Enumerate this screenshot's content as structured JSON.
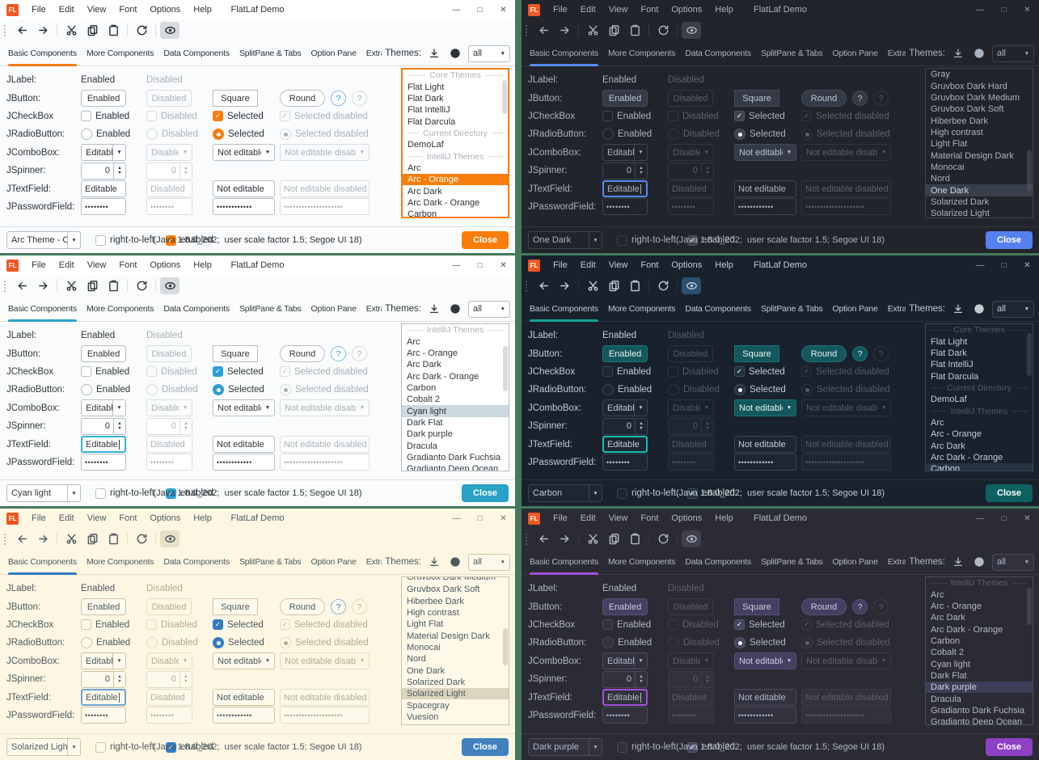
{
  "desktop": {
    "background": "#46795b"
  },
  "shared": {
    "logo_text": "FL",
    "title": "FlatLaf Demo",
    "menus": [
      "File",
      "Edit",
      "View",
      "Font",
      "Options",
      "Help"
    ],
    "window_controls": {
      "minimize": "—",
      "maximize": "□",
      "close": "✕"
    },
    "toolbar_icons": [
      "back",
      "forward",
      "cut",
      "copy",
      "paste",
      "refresh",
      "show"
    ],
    "tabs": [
      "Basic Components",
      "More Components",
      "Data Components",
      "SplitPane & Tabs",
      "Option Pane",
      "Extras"
    ],
    "themes_panel": {
      "label": "Themes:",
      "filter_value": "all"
    },
    "icons": {
      "dropdown_arrow": "▼",
      "spinner_up": "▲",
      "spinner_down": "▼"
    },
    "grid": {
      "jlabel": {
        "label": "JLabel:",
        "enabled": "Enabled",
        "disabled": "Disabled"
      },
      "jbutton": {
        "label": "JButton:",
        "buttons": [
          "Enabled",
          "Disabled",
          "Square",
          "Round"
        ],
        "help": "?"
      },
      "jcheckbox": {
        "label": "JCheckBox",
        "items": [
          "Enabled",
          "Disabled",
          "Selected",
          "Selected disabled"
        ]
      },
      "jradiobutton": {
        "label": "JRadioButton:",
        "items": [
          "Enabled",
          "Disabled",
          "Selected",
          "Selected disabled"
        ]
      },
      "jcombobox": {
        "label": "JComboBox:",
        "items": [
          "Editable",
          "Disabled",
          "Not editable",
          "Not editable disabled"
        ]
      },
      "jspinner": {
        "label": "JSpinner:",
        "value": "0"
      },
      "jtextfield": {
        "label": "JTextField:",
        "items": [
          "Editable",
          "Disabled",
          "Not editable",
          "Not editable disabled"
        ]
      },
      "jpasswordfield": {
        "label": "JPasswordField:",
        "values": [
          "••••••••",
          "••••••••",
          "••••••••••••",
          "••••••••••••••••••••"
        ]
      }
    },
    "statusbar": {
      "rtl_label": "right-to-left",
      "enabled_label": "enabled",
      "info": "(Java 1.8.0_202;  user scale factor 1.5; Segoe UI 18)",
      "close_label": "Close"
    }
  },
  "windows": [
    {
      "name": "arc-orange",
      "theme_combo_value": "Arc Theme - O...",
      "textfield_focused": false,
      "caret": false,
      "list_focused": true,
      "scrollbar": {
        "top_pct": 6,
        "height_pct": 24
      },
      "colors": {
        "bg": "#fafbfc",
        "titlebar": "#ffffff",
        "text": "#2b3238",
        "dim": "#a9b2b9",
        "field": "#ffffff",
        "border": "#b4bec6",
        "border_dim": "#d7dde1",
        "btn": "#ffffff",
        "btn_border": "#b4bec6",
        "btn_text": "#2b3238",
        "accent": "#f97d0c",
        "sel_bg": "#f97d0c",
        "sel_text": "#ffffff",
        "close": "#f97d0c",
        "check": "#f97d0c",
        "check_border": "#f97d0c",
        "divider": "#d9dee2",
        "list_bg": "#ffffff",
        "list_border": "#f97d0c",
        "focus": "#f97d0c",
        "highlight": "#d7dbdf",
        "help_bg": "#ffffff",
        "help_border": "#85b7e9",
        "help_text": "#3a8ad8"
      },
      "list": [
        {
          "type": "header",
          "label": "Core Themes"
        },
        {
          "type": "item",
          "label": "Flat Light"
        },
        {
          "type": "item",
          "label": "Flat Dark"
        },
        {
          "type": "item",
          "label": "Flat IntelliJ"
        },
        {
          "type": "item",
          "label": "Flat Darcula"
        },
        {
          "type": "header",
          "label": "Current Directory"
        },
        {
          "type": "item",
          "label": "DemoLaf"
        },
        {
          "type": "header",
          "label": "IntelliJ Themes"
        },
        {
          "type": "item",
          "label": "Arc"
        },
        {
          "type": "item",
          "label": "Arc - Orange",
          "selected": true
        },
        {
          "type": "item",
          "label": "Arc Dark"
        },
        {
          "type": "item",
          "label": "Arc Dark - Orange"
        },
        {
          "type": "item",
          "label": "Carbon"
        }
      ]
    },
    {
      "name": "one-dark",
      "theme_combo_value": "One Dark",
      "textfield_focused": true,
      "caret": true,
      "list_focused": false,
      "scrollbar": {
        "top_pct": 55,
        "height_pct": 28
      },
      "colors": {
        "bg": "#21252b",
        "titlebar": "#21252b",
        "text": "#a8b1bf",
        "dim": "#5a6270",
        "field": "#21252b",
        "border": "#3d434e",
        "border_dim": "#31363e",
        "btn": "#353b46",
        "btn_border": "#444b58",
        "btn_text": "#bcc5d2",
        "accent": "#568af2",
        "sel_bg": "#3a404b",
        "sel_text": "#ced6e2",
        "close": "#5680ef",
        "check": "#3c434e",
        "check_border": "#4d5563",
        "divider": "#34383f",
        "list_bg": "#21252b",
        "list_border": "#3d434e",
        "focus": "#568af2",
        "highlight": "#3a3f4a",
        "help_bg": "#353b46",
        "help_border": "#444b58",
        "help_text": "#c6cedb"
      },
      "list": [
        {
          "type": "item",
          "label": "Gray"
        },
        {
          "type": "item",
          "label": "Gruvbox Dark Hard"
        },
        {
          "type": "item",
          "label": "Gruvbox Dark Medium"
        },
        {
          "type": "item",
          "label": "Gruvbox Dark Soft"
        },
        {
          "type": "item",
          "label": "Hiberbee Dark"
        },
        {
          "type": "item",
          "label": "High contrast"
        },
        {
          "type": "item",
          "label": "Light Flat"
        },
        {
          "type": "item",
          "label": "Material Design Dark"
        },
        {
          "type": "item",
          "label": "Monocai"
        },
        {
          "type": "item",
          "label": "Nord"
        },
        {
          "type": "item",
          "label": "One Dark",
          "selected": true
        },
        {
          "type": "item",
          "label": "Solarized Dark"
        },
        {
          "type": "item",
          "label": "Solarized Light"
        }
      ]
    },
    {
      "name": "cyan-light",
      "theme_combo_value": "Cyan light",
      "textfield_focused": true,
      "caret": true,
      "list_focused": false,
      "scrollbar": {
        "top_pct": 14,
        "height_pct": 32
      },
      "colors": {
        "bg": "#fafbfb",
        "titlebar": "#ffffff",
        "text": "#31383d",
        "dim": "#a8b1b8",
        "field": "#ffffff",
        "border": "#b4bec6",
        "border_dim": "#d7dde1",
        "btn": "#ffffff",
        "btn_border": "#b4bec6",
        "btn_text": "#31383d",
        "accent": "#2ba4c9",
        "sel_bg": "#ccd9de",
        "sel_text": "#2b3135",
        "close": "#29a2c5",
        "check": "#2c9fd4",
        "check_border": "#2c9fd4",
        "divider": "#dadfe2",
        "list_bg": "#ffffff",
        "list_border": "#b4bec6",
        "focus": "#30b6dc",
        "highlight": "#d7dbdf",
        "help_bg": "#ffffff",
        "help_border": "#7cc3e0",
        "help_text": "#2b9fd3"
      },
      "list": [
        {
          "type": "header",
          "label": "IntelliJ Themes"
        },
        {
          "type": "item",
          "label": "Arc"
        },
        {
          "type": "item",
          "label": "Arc - Orange"
        },
        {
          "type": "item",
          "label": "Arc Dark"
        },
        {
          "type": "item",
          "label": "Arc Dark - Orange"
        },
        {
          "type": "item",
          "label": "Carbon"
        },
        {
          "type": "item",
          "label": "Cobalt 2"
        },
        {
          "type": "item",
          "label": "Cyan light",
          "selected": true
        },
        {
          "type": "item",
          "label": "Dark Flat"
        },
        {
          "type": "item",
          "label": "Dark purple"
        },
        {
          "type": "item",
          "label": "Dracula"
        },
        {
          "type": "item",
          "label": "Gradianto Dark Fuchsia"
        },
        {
          "type": "item",
          "label": "Gradianto Deep Ocean"
        }
      ]
    },
    {
      "name": "carbon",
      "theme_combo_value": "Carbon",
      "textfield_focused": true,
      "caret": false,
      "list_focused": false,
      "scrollbar": {
        "top_pct": 5,
        "height_pct": 30
      },
      "colors": {
        "bg": "#19222c",
        "titlebar": "#19222c",
        "text": "#c2cad2",
        "dim": "#4f5b67",
        "field": "#1d2731",
        "border": "#394654",
        "border_dim": "#2b3542",
        "btn": "#14575c",
        "btn_border": "#1e737a",
        "btn_text": "#e4f4f2",
        "accent": "#15a29b",
        "sel_bg": "#263443",
        "sel_text": "#d2dae2",
        "close": "#0e6163",
        "check": "#223140",
        "check_border": "#44525f",
        "divider": "#273340",
        "list_bg": "#19222c",
        "list_border": "#394654",
        "focus": "#0fc0b4",
        "highlight": "#29506e",
        "help_bg": "#14575c",
        "help_border": "#1e737a",
        "help_text": "#e4f4f2"
      },
      "list": [
        {
          "type": "header",
          "label": "Core Themes"
        },
        {
          "type": "item",
          "label": "Flat Light"
        },
        {
          "type": "item",
          "label": "Flat Dark"
        },
        {
          "type": "item",
          "label": "Flat IntelliJ"
        },
        {
          "type": "item",
          "label": "Flat Darcula"
        },
        {
          "type": "header",
          "label": "Current Directory"
        },
        {
          "type": "item",
          "label": "DemoLaf"
        },
        {
          "type": "header",
          "label": "IntelliJ Themes"
        },
        {
          "type": "item",
          "label": "Arc"
        },
        {
          "type": "item",
          "label": "Arc - Orange"
        },
        {
          "type": "item",
          "label": "Arc Dark"
        },
        {
          "type": "item",
          "label": "Arc Dark - Orange"
        },
        {
          "type": "item",
          "label": "Carbon",
          "selected": true
        }
      ]
    },
    {
      "name": "solarized-light",
      "theme_combo_value": "Solarized Light",
      "textfield_focused": true,
      "caret": true,
      "list_focused": false,
      "scrollbar": {
        "top_pct": 34,
        "height_pct": 26
      },
      "colors": {
        "bg": "#fdf6e3",
        "titlebar": "#fdf6e3",
        "text": "#4d5a60",
        "dim": "#b3ac92",
        "field": "#fdfaec",
        "border": "#ccc4a8",
        "border_dim": "#e2dbc2",
        "btn": "#fdfaec",
        "btn_border": "#ccc4a8",
        "btn_text": "#4d5a60",
        "accent": "#337bc2",
        "sel_bg": "#dbd4be",
        "sel_text": "#4d5a60",
        "close": "#4181c0",
        "check": "#337bc2",
        "check_border": "#337bc2",
        "divider": "#e4ddc6",
        "list_bg": "#fdf8e8",
        "list_border": "#ccc4a8",
        "focus": "#6ea4d4",
        "highlight": "#e7e0c7",
        "help_bg": "#fdfaec",
        "help_border": "#8fb4d8",
        "help_text": "#337bc2"
      },
      "list": [
        {
          "type": "item",
          "label": "Gruvbox Dark Medium",
          "partial": true
        },
        {
          "type": "item",
          "label": "Gruvbox Dark Soft"
        },
        {
          "type": "item",
          "label": "Hiberbee Dark"
        },
        {
          "type": "item",
          "label": "High contrast"
        },
        {
          "type": "item",
          "label": "Light Flat"
        },
        {
          "type": "item",
          "label": "Material Design Dark"
        },
        {
          "type": "item",
          "label": "Monocai"
        },
        {
          "type": "item",
          "label": "Nord"
        },
        {
          "type": "item",
          "label": "One Dark"
        },
        {
          "type": "item",
          "label": "Solarized Dark"
        },
        {
          "type": "item",
          "label": "Solarized Light",
          "selected": true
        },
        {
          "type": "item",
          "label": "Spacegray"
        },
        {
          "type": "item",
          "label": "Vuesion"
        }
      ]
    },
    {
      "name": "dark-purple",
      "theme_combo_value": "Dark purple",
      "textfield_focused": true,
      "caret": true,
      "list_focused": false,
      "scrollbar": {
        "top_pct": 6,
        "height_pct": 26
      },
      "colors": {
        "bg": "#2b2b35",
        "titlebar": "#2b2b35",
        "text": "#b2b6c5",
        "dim": "#5f5f6e",
        "field": "#32323e",
        "border": "#4b4b5d",
        "border_dim": "#3c3c49",
        "btn": "#454061",
        "btn_border": "#565177",
        "btn_text": "#ccccde",
        "accent": "#a24fd6",
        "sel_bg": "#3c3f58",
        "sel_text": "#d0d0e2",
        "close": "#8d41c6",
        "check": "#45455f",
        "check_border": "#5a5a74",
        "divider": "#393945",
        "list_bg": "#2b2b35",
        "list_border": "#4b4b5d",
        "focus": "#a24fd6",
        "highlight": "#40404f",
        "help_bg": "#454061",
        "help_border": "#565177",
        "help_text": "#ccccde"
      },
      "list": [
        {
          "type": "header",
          "label": "IntelliJ Themes"
        },
        {
          "type": "item",
          "label": "Arc"
        },
        {
          "type": "item",
          "label": "Arc - Orange"
        },
        {
          "type": "item",
          "label": "Arc Dark"
        },
        {
          "type": "item",
          "label": "Arc Dark - Orange"
        },
        {
          "type": "item",
          "label": "Carbon"
        },
        {
          "type": "item",
          "label": "Cobalt 2"
        },
        {
          "type": "item",
          "label": "Cyan light"
        },
        {
          "type": "item",
          "label": "Dark Flat"
        },
        {
          "type": "item",
          "label": "Dark purple",
          "selected": true
        },
        {
          "type": "item",
          "label": "Dracula"
        },
        {
          "type": "item",
          "label": "Gradianto Dark Fuchsia"
        },
        {
          "type": "item",
          "label": "Gradianto Deep Ocean"
        }
      ]
    }
  ]
}
